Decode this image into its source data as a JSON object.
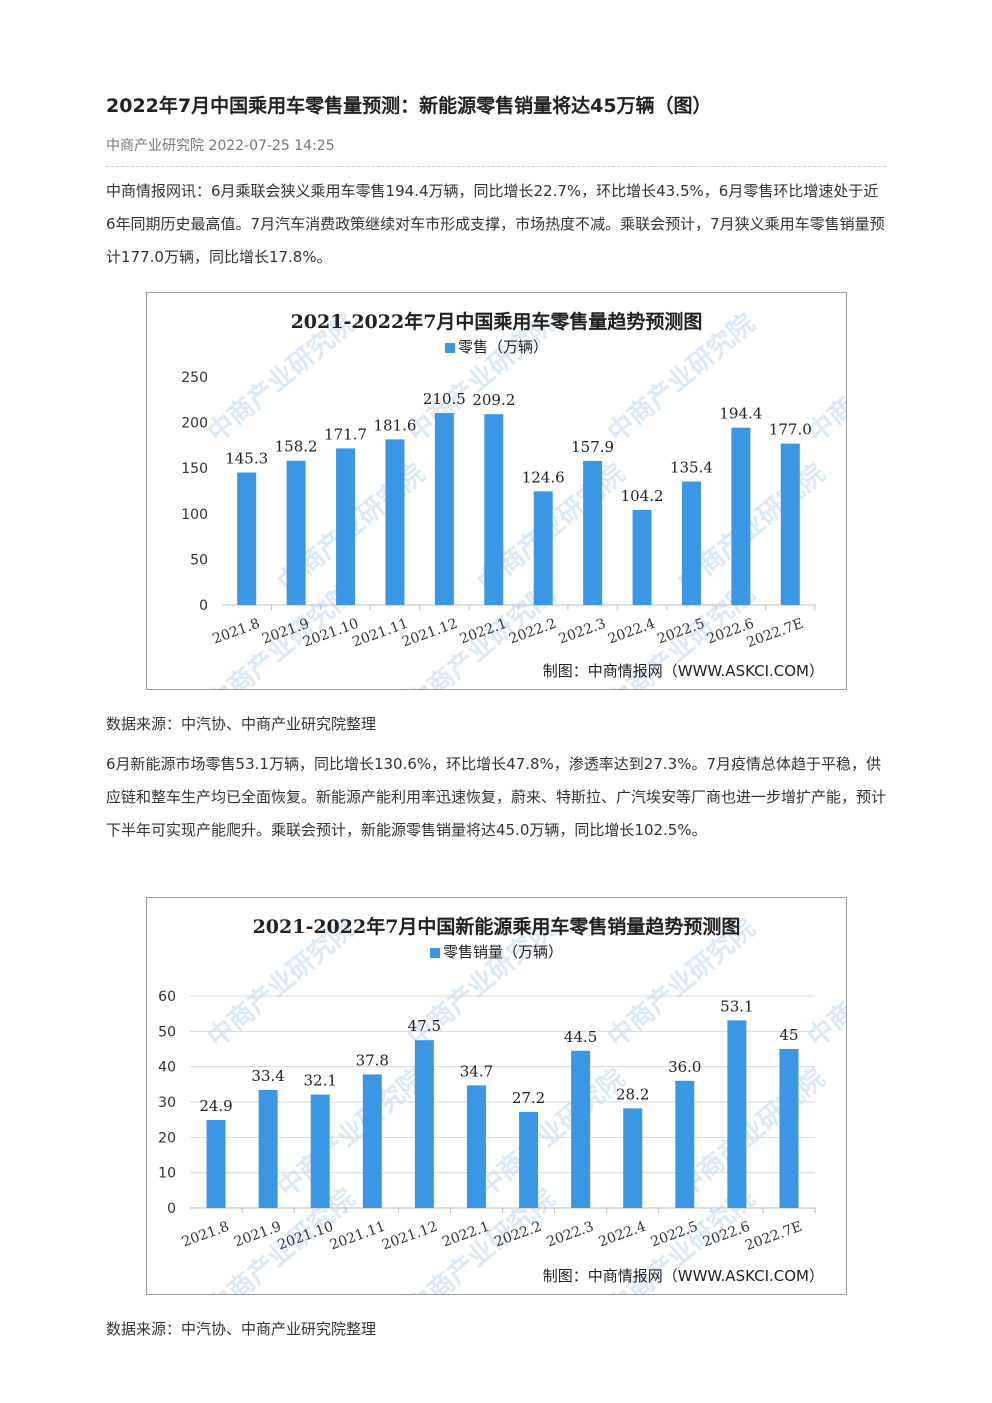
{
  "article": {
    "title": "2022年7月中国乘用车零售量预测：新能源零售销量将达45万辆（图）",
    "source_line": "中商产业研究院 2022-07-25 14:25",
    "paragraph1": "中商情报网讯：6月乘联会狭义乘用车零售194.4万辆，同比增长22.7%，环比增长43.5%，6月零售环比增速处于近6年同期历史最高值。7月汽车消费政策继续对车市形成支撑，市场热度不减。乘联会预计，7月狭义乘用车零售销量预计177.0万辆，同比增长17.8%。",
    "data_source1": "数据来源：中汽协、中商产业研究院整理",
    "paragraph2": "6月新能源市场零售53.1万辆，同比增长130.6%，环比增长47.8%，渗透率达到27.3%。7月疫情总体趋于平稳，供应链和整车生产均已全面恢复。新能源产能利用率迅速恢复，蔚来、特斯拉、广汽埃安等厂商也进一步增扩产能，预计下半年可实现产能爬升。乘联会预计，新能源零售销量将达45.0万辆，同比增长102.5%。",
    "data_source2": "数据来源：中汽协、中商产业研究院整理"
  },
  "watermark": "中商产业研究院",
  "colors": {
    "bar": "#3b97e3",
    "grid": "#d9d9d9",
    "border": "#9a9a9a",
    "watermark": "#dce9f6"
  },
  "chart_data": [
    {
      "type": "bar",
      "title": "2021-2022年7月中国乘用车零售量趋势预测图",
      "legend": "零售（万辆）",
      "credit": "制图：中商情报网（WWW.ASKCI.COM）",
      "categories": [
        "2021.8",
        "2021.9",
        "2021.10",
        "2021.11",
        "2021.12",
        "2022.1",
        "2022.2",
        "2022.3",
        "2022.4",
        "2022.5",
        "2022.6",
        "2022.7E"
      ],
      "series": [
        {
          "name": "零售（万辆）",
          "values": [
            145.3,
            158.2,
            171.7,
            181.6,
            210.5,
            209.2,
            124.6,
            157.9,
            104.2,
            135.4,
            194.4,
            177.0
          ]
        }
      ],
      "value_labels": [
        "145.3",
        "158.2",
        "171.7",
        "181.6",
        "210.5",
        "209.2",
        "124.6",
        "157.9",
        "104.2",
        "135.4",
        "194.4",
        "177.0"
      ],
      "ylim": [
        0,
        250
      ],
      "yticks": [
        0,
        50,
        100,
        150,
        200,
        250
      ],
      "grid": false,
      "legend_position": "top-center"
    },
    {
      "type": "bar",
      "title": "2021-2022年7月中国新能源乘用车零售销量趋势预测图",
      "legend": "零售销量（万辆）",
      "credit": "制图：中商情报网（WWW.ASKCI.COM）",
      "categories": [
        "2021.8",
        "2021.9",
        "2021.10",
        "2021.11",
        "2021.12",
        "2022.1",
        "2022.2",
        "2022.3",
        "2022.4",
        "2022.5",
        "2022.6",
        "2022.7E"
      ],
      "series": [
        {
          "name": "零售销量（万辆）",
          "values": [
            24.9,
            33.4,
            32.1,
            37.8,
            47.5,
            34.7,
            27.2,
            44.5,
            28.2,
            36.0,
            53.1,
            45
          ]
        }
      ],
      "value_labels": [
        "24.9",
        "33.4",
        "32.1",
        "37.8",
        "47.5",
        "34.7",
        "27.2",
        "44.5",
        "28.2",
        "36.0",
        "53.1",
        "45"
      ],
      "ylim": [
        0,
        60
      ],
      "yticks": [
        0,
        10,
        20,
        30,
        40,
        50,
        60
      ],
      "grid": true,
      "legend_position": "top-center"
    }
  ]
}
